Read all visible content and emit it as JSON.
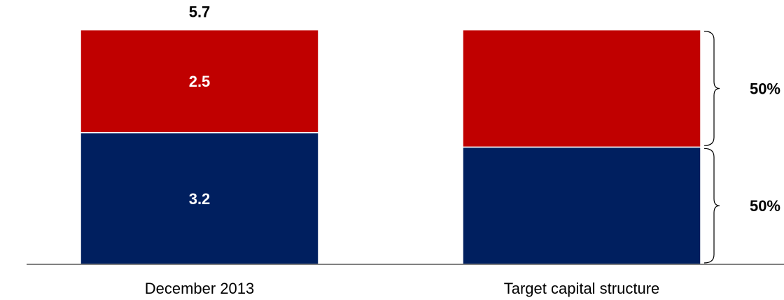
{
  "chart_data": {
    "type": "bar",
    "stacked": true,
    "categories": [
      "December 2013",
      "Target capital structure"
    ],
    "series": [
      {
        "values": [
          3.2,
          2.85
        ],
        "color": "#001F5F",
        "labels": [
          "3.2",
          ""
        ]
      },
      {
        "values": [
          2.5,
          2.85
        ],
        "color": "#C00000",
        "labels": [
          "2.5",
          ""
        ]
      }
    ],
    "totals": [
      "5.7",
      ""
    ],
    "brackets": [
      "50%",
      "50%"
    ],
    "ylim": [
      0,
      6.0
    ],
    "grid": false,
    "legend": "none",
    "axis_color": "#808080"
  }
}
